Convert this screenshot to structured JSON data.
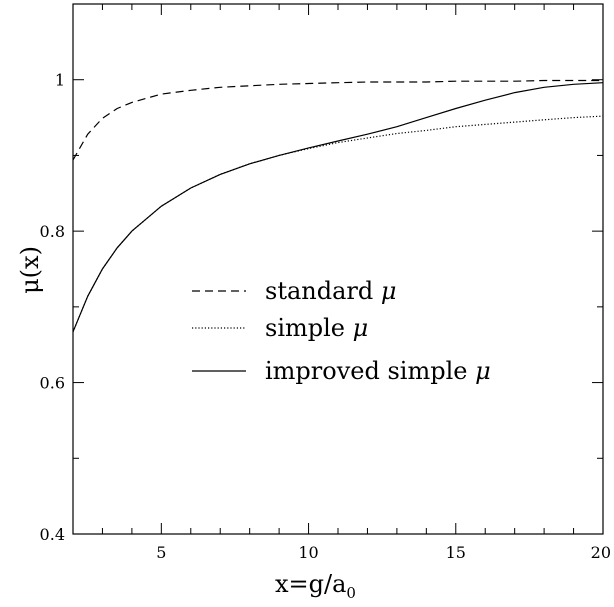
{
  "chart_data": {
    "type": "line",
    "xlabel": "x=g/a",
    "xlabel_sub": "0",
    "ylabel": "μ(x)",
    "xlim": [
      2,
      20
    ],
    "ylim": [
      0.4,
      1.1
    ],
    "x_major_ticks": [
      5,
      10,
      15,
      20
    ],
    "x_minor_ticks": [
      3,
      4,
      6,
      7,
      8,
      9,
      11,
      12,
      13,
      14,
      16,
      17,
      18,
      19
    ],
    "y_major_ticks": [
      0.4,
      0.6,
      0.8,
      1.0
    ],
    "y_tick_labels": [
      "0.4",
      "0.6",
      "0.8",
      "1"
    ],
    "y_minor_ticks": [
      0.5,
      0.7,
      0.9,
      1.1
    ],
    "grid": false,
    "legend_position": "center",
    "series": [
      {
        "name": "standard μ",
        "label_text": "standard ",
        "style": "dashed",
        "x": [
          2,
          2.5,
          3,
          3.5,
          4,
          5,
          6,
          7,
          8,
          9,
          10,
          11,
          12,
          13,
          14,
          15,
          16,
          17,
          18,
          19,
          20
        ],
        "y": [
          0.894,
          0.928,
          0.949,
          0.962,
          0.97,
          0.981,
          0.986,
          0.99,
          0.992,
          0.994,
          0.995,
          0.996,
          0.997,
          0.997,
          0.997,
          0.998,
          0.998,
          0.998,
          0.999,
          0.999,
          0.999
        ]
      },
      {
        "name": "simple μ",
        "label_text": "simple ",
        "style": "dotted",
        "x": [
          2,
          2.5,
          3,
          3.5,
          4,
          5,
          6,
          7,
          8,
          9,
          10,
          11,
          12,
          13,
          14,
          15,
          16,
          17,
          18,
          19,
          20
        ],
        "y": [
          0.667,
          0.714,
          0.75,
          0.778,
          0.8,
          0.833,
          0.857,
          0.875,
          0.889,
          0.9,
          0.909,
          0.917,
          0.923,
          0.929,
          0.933,
          0.938,
          0.941,
          0.944,
          0.947,
          0.95,
          0.952
        ]
      },
      {
        "name": "improved simple μ",
        "label_text": "improved simple ",
        "style": "solid",
        "x": [
          2,
          2.5,
          3,
          3.5,
          4,
          5,
          6,
          7,
          8,
          9,
          10,
          11,
          12,
          13,
          14,
          15,
          16,
          17,
          18,
          19,
          20
        ],
        "y": [
          0.667,
          0.714,
          0.75,
          0.778,
          0.8,
          0.833,
          0.857,
          0.875,
          0.889,
          0.9,
          0.91,
          0.919,
          0.928,
          0.938,
          0.95,
          0.962,
          0.973,
          0.983,
          0.99,
          0.994,
          0.996
        ]
      }
    ],
    "legend_symbol": "μ"
  }
}
